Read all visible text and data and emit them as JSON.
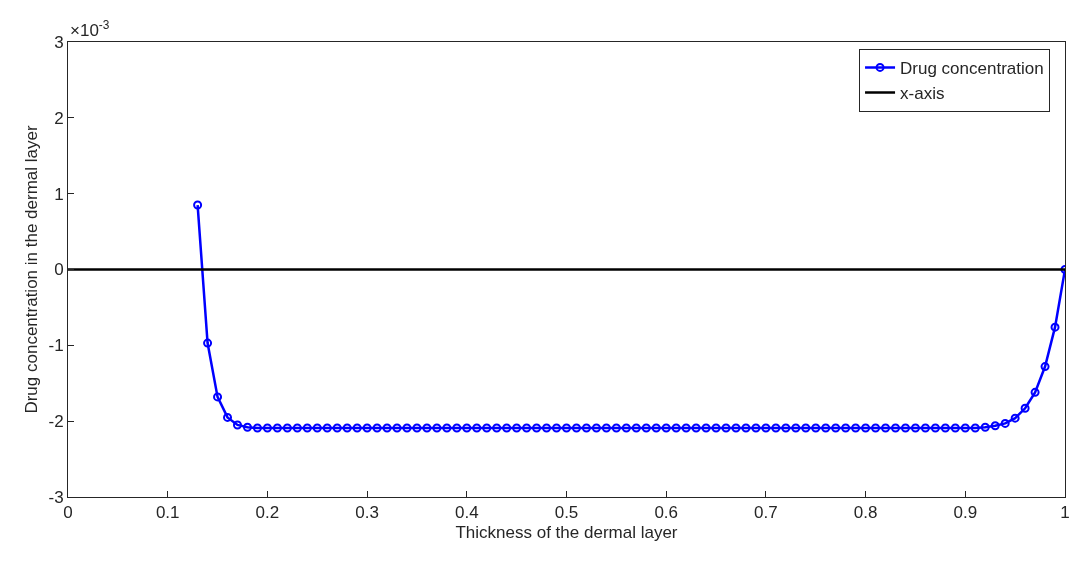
{
  "chart_data": {
    "type": "line",
    "xlabel": "Thickness of the dermal layer",
    "ylabel": "Drug concentration in the dermal layer",
    "annotations": [
      "×10$^{-3}$"
    ],
    "xlim": [
      0,
      1
    ],
    "xticks": [
      0,
      0.1,
      0.2,
      0.3,
      0.4,
      0.5,
      0.6,
      0.7,
      0.8,
      0.9,
      1
    ],
    "ylim": [
      -3,
      3
    ],
    "yticks": [
      -3,
      -2,
      -1,
      0,
      1,
      2,
      3
    ],
    "legend": "top right",
    "line_style": "solid",
    "series": [
      {
        "name": "Drug concentration",
        "color": "#0000ff",
        "marker": "circle",
        "x": [
          0.13,
          0.14,
          0.15,
          0.16,
          0.17,
          0.18,
          0.19,
          0.2,
          0.21,
          0.22,
          0.23,
          0.24,
          0.25,
          0.26,
          0.27,
          0.28,
          0.29,
          0.3,
          0.31,
          0.32,
          0.33,
          0.34,
          0.35,
          0.36,
          0.37,
          0.38,
          0.39,
          0.4,
          0.41,
          0.42,
          0.43,
          0.44,
          0.45,
          0.46,
          0.47,
          0.48,
          0.49,
          0.5,
          0.51,
          0.52,
          0.53,
          0.54,
          0.55,
          0.56,
          0.57,
          0.58,
          0.59,
          0.6,
          0.61,
          0.62,
          0.63,
          0.64,
          0.65,
          0.66,
          0.67,
          0.68,
          0.69,
          0.7,
          0.71,
          0.72,
          0.73,
          0.74,
          0.75,
          0.76,
          0.77,
          0.78,
          0.79,
          0.8,
          0.81,
          0.82,
          0.83,
          0.84,
          0.85,
          0.86,
          0.87,
          0.88,
          0.89,
          0.9,
          0.91,
          0.92,
          0.93,
          0.94,
          0.95,
          0.96,
          0.97,
          0.98,
          0.99,
          1
        ],
        "values": [
          0.85,
          -0.97,
          -1.68,
          -1.95,
          -2.05,
          -2.08,
          -2.09,
          -2.09,
          -2.09,
          -2.09,
          -2.09,
          -2.09,
          -2.09,
          -2.09,
          -2.09,
          -2.09,
          -2.09,
          -2.09,
          -2.09,
          -2.09,
          -2.09,
          -2.09,
          -2.09,
          -2.09,
          -2.09,
          -2.09,
          -2.09,
          -2.09,
          -2.09,
          -2.09,
          -2.09,
          -2.09,
          -2.09,
          -2.09,
          -2.09,
          -2.09,
          -2.09,
          -2.09,
          -2.09,
          -2.09,
          -2.09,
          -2.09,
          -2.09,
          -2.09,
          -2.09,
          -2.09,
          -2.09,
          -2.09,
          -2.09,
          -2.09,
          -2.09,
          -2.09,
          -2.09,
          -2.09,
          -2.09,
          -2.09,
          -2.09,
          -2.09,
          -2.09,
          -2.09,
          -2.09,
          -2.09,
          -2.09,
          -2.09,
          -2.09,
          -2.09,
          -2.09,
          -2.09,
          -2.09,
          -2.09,
          -2.09,
          -2.09,
          -2.09,
          -2.09,
          -2.09,
          -2.09,
          -2.09,
          -2.09,
          -2.09,
          -2.08,
          -2.06,
          -2.03,
          -1.96,
          -1.83,
          -1.62,
          -1.28,
          -0.76,
          0
        ]
      },
      {
        "name": "x-axis",
        "color": "#000000",
        "marker": "none",
        "x": [
          0,
          1
        ],
        "values": [
          0,
          0
        ]
      }
    ]
  }
}
